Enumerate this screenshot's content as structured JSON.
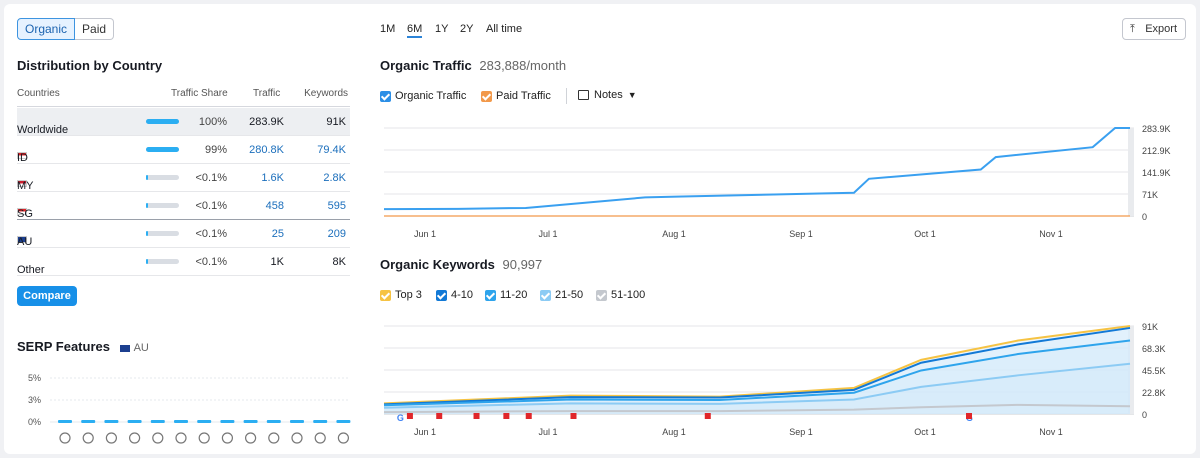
{
  "tabs": {
    "organic": "Organic",
    "paid": "Paid"
  },
  "distribution": {
    "title": "Distribution by Country",
    "columns": [
      "Countries",
      "Traffic Share",
      "Traffic",
      "Keywords"
    ],
    "rows": [
      {
        "country": "Worldwide",
        "share": "100%",
        "share_frac": 1.0,
        "traffic": "283.9K",
        "keywords": "91K"
      },
      {
        "country": "ID",
        "share": "99%",
        "share_frac": 0.99,
        "traffic": "280.8K",
        "keywords": "79.4K"
      },
      {
        "country": "MY",
        "share": "<0.1%",
        "share_frac": 0.01,
        "traffic": "1.6K",
        "keywords": "2.8K"
      },
      {
        "country": "SG",
        "share": "<0.1%",
        "share_frac": 0.01,
        "traffic": "458",
        "keywords": "595"
      },
      {
        "country": "AU",
        "share": "<0.1%",
        "share_frac": 0.01,
        "traffic": "25",
        "keywords": "209"
      },
      {
        "country": "Other",
        "share": "<0.1%",
        "share_frac": 0.01,
        "traffic": "1K",
        "keywords": "8K"
      }
    ],
    "compare_label": "Compare"
  },
  "serp": {
    "title": "SERP Features",
    "country": "AU",
    "yticks": [
      "5%",
      "3%",
      "0%"
    ],
    "icons": [
      "graduation-icon",
      "location-icon",
      "image-icon",
      "news-icon",
      "link-icon",
      "star-icon",
      "video-icon",
      "play-icon",
      "carousel-icon",
      "image-pack-icon",
      "play-circle-icon",
      "comment-icon",
      "question-icon"
    ]
  },
  "ranges": [
    "1M",
    "6M",
    "1Y",
    "2Y",
    "All time"
  ],
  "active_range": "6M",
  "export_label": "Export",
  "traffic": {
    "title": "Organic Traffic",
    "value": "283,888/month",
    "legend": {
      "organic": "Organic Traffic",
      "paid": "Paid Traffic",
      "notes": "Notes"
    }
  },
  "keywords": {
    "title": "Organic Keywords",
    "value": "90,997",
    "legend": [
      "Top 3",
      "4-10",
      "11-20",
      "21-50",
      "51-100"
    ]
  },
  "colors": {
    "organic": "#3aa0f0",
    "paid": "#f2994a",
    "top3": "#f6c343",
    "k410": "#1279d6",
    "k1120": "#2ea4ec",
    "k2150": "#8ccbf4",
    "k51100": "#c4c8ce",
    "marker": "#e0262a"
  },
  "chart_data": [
    {
      "type": "line",
      "title": "Organic Traffic",
      "x": [
        "Jun 1",
        "Jul 1",
        "Aug 1",
        "Sep 1",
        "Oct 1",
        "Nov 1"
      ],
      "yticks": [
        "283.9K",
        "212.9K",
        "141.9K",
        "71K",
        "0"
      ],
      "ylim": [
        0,
        283900
      ],
      "series": [
        {
          "name": "Organic Traffic",
          "values": [
            [
              0,
              22000
            ],
            [
              0.1,
              23000
            ],
            [
              0.19,
              26000
            ],
            [
              0.35,
              60000
            ],
            [
              0.4,
              63000
            ],
            [
              0.63,
              75000
            ],
            [
              0.65,
              120000
            ],
            [
              0.8,
              150000
            ],
            [
              0.82,
              190000
            ],
            [
              0.95,
              222000
            ],
            [
              0.98,
              283900
            ],
            [
              1.0,
              284000
            ]
          ]
        },
        {
          "name": "Paid Traffic",
          "values": [
            [
              0,
              0
            ],
            [
              1.0,
              0
            ]
          ]
        }
      ]
    },
    {
      "type": "area",
      "title": "Organic Keywords",
      "x": [
        "Jun 1",
        "Jul 1",
        "Aug 1",
        "Sep 1",
        "Oct 1",
        "Nov 1"
      ],
      "yticks": [
        "91K",
        "68.3K",
        "45.5K",
        "22.8K",
        "0"
      ],
      "ylim": [
        0,
        91000
      ],
      "series": [
        {
          "name": "Top 3",
          "values": [
            [
              0,
              11000
            ],
            [
              0.25,
              19000
            ],
            [
              0.45,
              18000
            ],
            [
              0.63,
              27000
            ],
            [
              0.72,
              56000
            ],
            [
              0.85,
              76000
            ],
            [
              1.0,
              91000
            ]
          ]
        },
        {
          "name": "4-10",
          "values": [
            [
              0,
              10000
            ],
            [
              0.25,
              17500
            ],
            [
              0.45,
              17000
            ],
            [
              0.63,
              25000
            ],
            [
              0.72,
              53000
            ],
            [
              0.85,
              72000
            ],
            [
              1.0,
              89000
            ]
          ]
        },
        {
          "name": "11-20",
          "values": [
            [
              0,
              9000
            ],
            [
              0.25,
              15000
            ],
            [
              0.45,
              14500
            ],
            [
              0.63,
              22000
            ],
            [
              0.72,
              45000
            ],
            [
              0.85,
              62000
            ],
            [
              1.0,
              76000
            ]
          ]
        },
        {
          "name": "21-50",
          "values": [
            [
              0,
              6500
            ],
            [
              0.25,
              11000
            ],
            [
              0.45,
              10500
            ],
            [
              0.63,
              15000
            ],
            [
              0.72,
              28000
            ],
            [
              0.85,
              40000
            ],
            [
              1.0,
              52000
            ]
          ]
        },
        {
          "name": "51-100",
          "values": [
            [
              0,
              2000
            ],
            [
              0.25,
              3000
            ],
            [
              0.45,
              3000
            ],
            [
              0.63,
              4500
            ],
            [
              0.72,
              7000
            ],
            [
              0.85,
              9500
            ],
            [
              1.0,
              8000
            ]
          ]
        }
      ],
      "markers": [
        0.02,
        0.07,
        0.12,
        0.16,
        0.19,
        0.25,
        0.43,
        0.78
      ]
    }
  ]
}
